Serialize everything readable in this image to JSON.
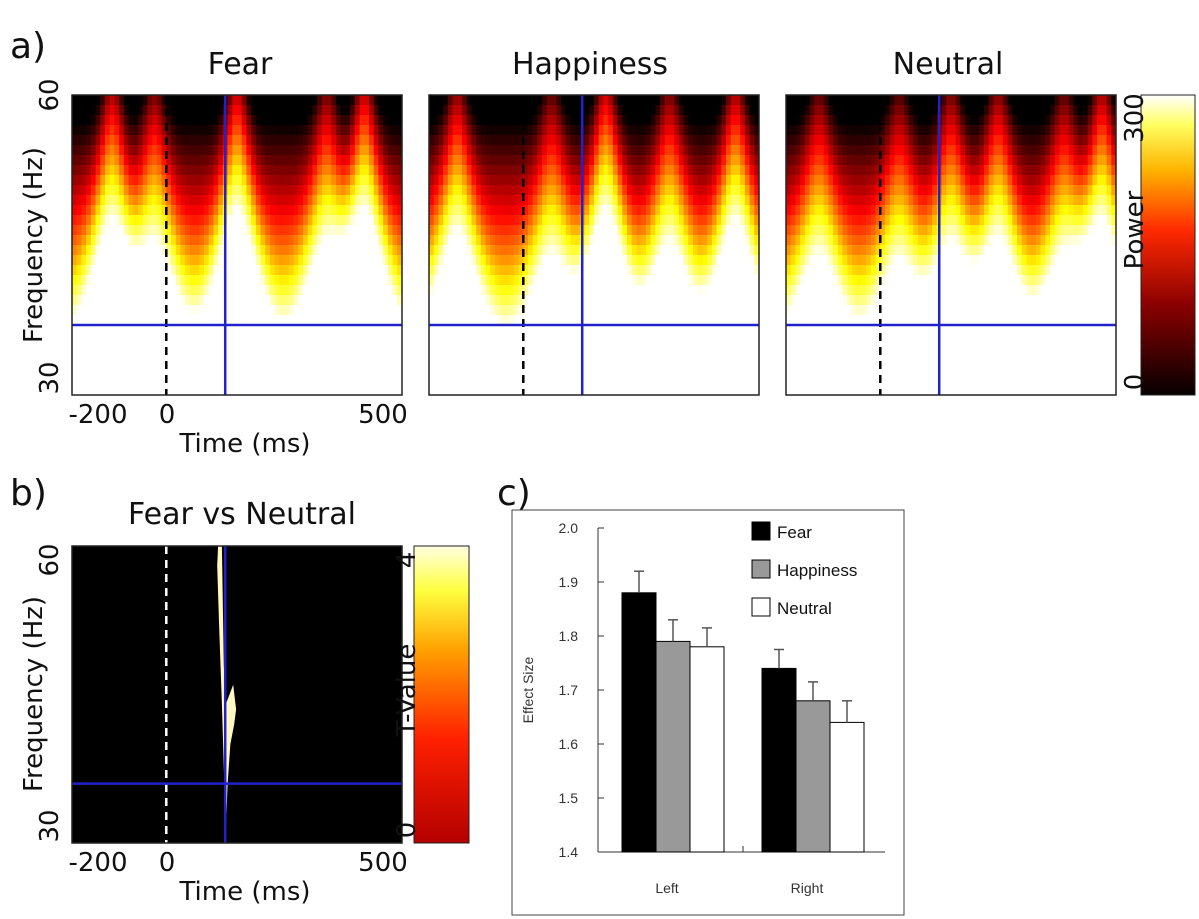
{
  "panel_a": {
    "label": "a)",
    "frequency_ticks": [
      "60",
      "30"
    ],
    "ylabel": "Frequency (Hz)",
    "time_ticks": [
      "-200",
      "0",
      "500"
    ],
    "xlabel": "Time (ms)",
    "colorbar": {
      "label": "Power",
      "max_label": "300",
      "min_label": "0"
    }
  },
  "panel_b": {
    "label": "b)",
    "frequency_ticks": [
      "60",
      "30"
    ],
    "ylabel": "Frequency (Hz)",
    "time_ticks": [
      "-200",
      "0",
      "500"
    ],
    "xlabel": "Time (ms)",
    "colorbar": {
      "label": "T-Value",
      "max_label": "4",
      "min_label": "0"
    }
  },
  "panel_c": {
    "label": "c)"
  },
  "colors": {
    "marker_line": "#2222cc",
    "fear": "#000000",
    "happiness": "#999999",
    "neutral": "#ffffff"
  },
  "chart_data": [
    {
      "type": "heatmap",
      "title": "Fear",
      "x_range": [
        -200,
        500
      ],
      "y_range": [
        30,
        60
      ],
      "z_range": [
        0,
        300
      ],
      "markers": {
        "onset_time_ms": 0,
        "vertical_time_ms": 125,
        "horizontal_frequency_hz": 37
      }
    },
    {
      "type": "heatmap",
      "title": "Happiness",
      "x_range": [
        -200,
        500
      ],
      "y_range": [
        30,
        60
      ],
      "z_range": [
        0,
        300
      ],
      "markers": {
        "onset_time_ms": 0,
        "vertical_time_ms": 125,
        "horizontal_frequency_hz": 37
      }
    },
    {
      "type": "heatmap",
      "title": "Neutral",
      "x_range": [
        -200,
        500
      ],
      "y_range": [
        30,
        60
      ],
      "z_range": [
        0,
        300
      ],
      "markers": {
        "onset_time_ms": 0,
        "vertical_time_ms": 125,
        "horizontal_frequency_hz": 37
      }
    },
    {
      "type": "heatmap",
      "title": "Fear vs Neutral",
      "x_range": [
        -200,
        500
      ],
      "y_range": [
        30,
        60
      ],
      "z_range": [
        0,
        4
      ],
      "markers": {
        "onset_time_ms": 0,
        "vertical_time_ms": 125,
        "horizontal_frequency_hz": 36
      }
    },
    {
      "type": "bar",
      "ylabel": "Effect Size",
      "categories": [
        "Left",
        "Right"
      ],
      "ylim": [
        1.4,
        2.0
      ],
      "yticks": [
        "1.4",
        "1.5",
        "1.6",
        "1.7",
        "1.8",
        "1.9",
        "2.0"
      ],
      "legend_position": "top-right",
      "series": [
        {
          "name": "Fear",
          "values": [
            1.88,
            1.74
          ],
          "errors": [
            0.04,
            0.035
          ]
        },
        {
          "name": "Happiness",
          "values": [
            1.79,
            1.68
          ],
          "errors": [
            0.04,
            0.035
          ]
        },
        {
          "name": "Neutral",
          "values": [
            1.78,
            1.64
          ],
          "errors": [
            0.035,
            0.04
          ]
        }
      ]
    }
  ]
}
